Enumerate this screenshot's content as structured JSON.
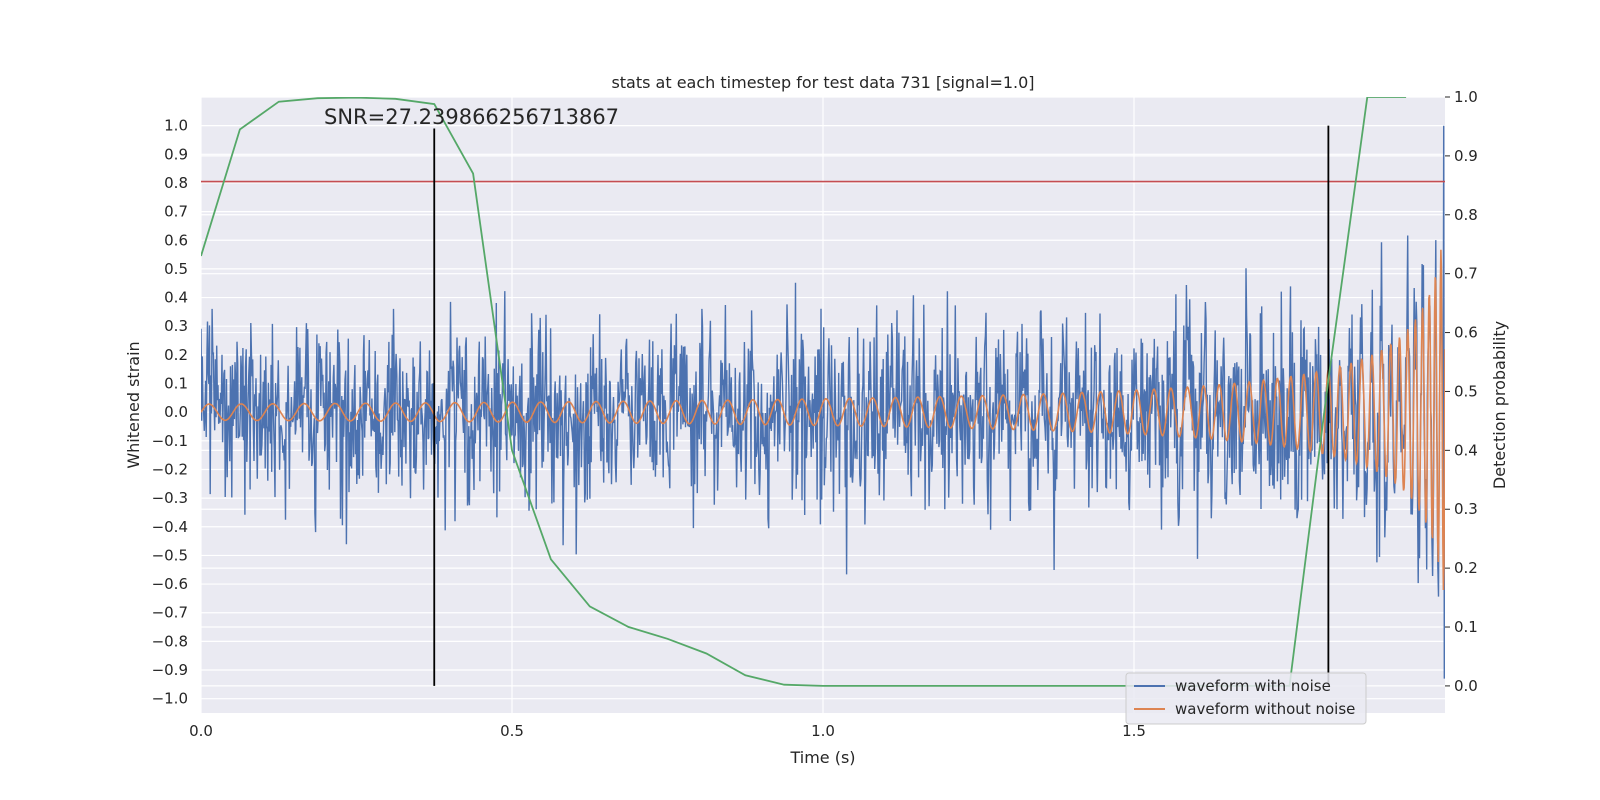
{
  "chart_data": {
    "type": "line",
    "title": "stats at each timestep for test data 731 [signal=1.0]",
    "xlabel": "Time (s)",
    "ylabel": "Whitened strain",
    "y2label": "Detection probability",
    "annotation": "SNR=27.239866256713867",
    "xlim": [
      0.0,
      2.0
    ],
    "ylim": [
      -1.05,
      1.1
    ],
    "y2lim": [
      -0.046,
      1.0
    ],
    "xticks": [
      0.0,
      0.5,
      1.0,
      1.5
    ],
    "xtick_labels": [
      "0.0",
      "0.5",
      "1.0",
      "1.5"
    ],
    "yticks": [
      1.0,
      0.9,
      0.8,
      0.7,
      0.6,
      0.5,
      0.4,
      0.3,
      0.2,
      0.1,
      0.0,
      -0.1,
      -0.2,
      -0.3,
      -0.4,
      -0.5,
      -0.6,
      -0.7,
      -0.8,
      -0.9,
      -1.0
    ],
    "ytick_labels": [
      "1.0",
      "0.9",
      "0.8",
      "0.7",
      "0.6",
      "0.5",
      "0.4",
      "0.3",
      "0.2",
      "0.1",
      "0.0",
      "−0.1",
      "−0.2",
      "−0.3",
      "−0.4",
      "−0.5",
      "−0.6",
      "−0.7",
      "−0.8",
      "−0.9",
      "−1.0"
    ],
    "y2ticks": [
      1.0,
      0.9,
      0.8,
      0.7,
      0.6,
      0.5,
      0.4,
      0.3,
      0.2,
      0.1,
      0.0
    ],
    "y2tick_labels": [
      "1.0",
      "0.9",
      "0.8",
      "0.7",
      "0.6",
      "0.5",
      "0.4",
      "0.3",
      "0.2",
      "0.1",
      "0.0"
    ],
    "grid": true,
    "legend_position": "lower-right",
    "series": [
      {
        "name": "waveform with noise",
        "color": "#4c72b0",
        "axis": "left",
        "description": "dense whitened noisy strain time series, roughly within -0.5..0.5, ending with a spike near 1.0 at t≈2.0"
      },
      {
        "name": "waveform without noise",
        "color": "#dd8452",
        "axis": "left",
        "description": "chirp signal, amplitude ~0.03 at t=0 growing to ~0.8 near t=2.0, frequency increasing"
      }
    ],
    "detection_probability": {
      "color": "#55a868",
      "axis": "right",
      "x": [
        0.0,
        0.0625,
        0.125,
        0.1875,
        0.25,
        0.3125,
        0.375,
        0.4375,
        0.5,
        0.5625,
        0.625,
        0.6875,
        0.75,
        0.8125,
        0.875,
        0.9375,
        1.0,
        1.0625,
        1.125,
        1.1875,
        1.25,
        1.3125,
        1.375,
        1.4375,
        1.5,
        1.5625,
        1.625,
        1.6875,
        1.75,
        1.8125,
        1.875,
        1.9375
      ],
      "y": [
        0.73,
        0.945,
        0.992,
        0.998,
        0.999,
        0.997,
        0.988,
        0.87,
        0.4,
        0.215,
        0.135,
        0.1,
        0.08,
        0.055,
        0.018,
        0.002,
        0.0,
        0.0,
        0.0,
        0.0,
        0.0,
        0.0,
        0.0,
        0.0,
        0.0,
        0.0,
        0.0,
        0.0,
        0.0,
        0.52,
        1.0,
        1.0
      ]
    },
    "threshold": {
      "value": 0.805,
      "axis": "left",
      "color": "#c44e52"
    },
    "vertical_markers": [
      {
        "x": 0.375,
        "y_top": 0.99,
        "color": "#000000"
      },
      {
        "x": 1.8125,
        "y_top": 1.0,
        "color": "#000000"
      }
    ],
    "colors": {
      "plot_background": "#eaeaf2",
      "grid": "#ffffff",
      "text": "#262626"
    }
  }
}
